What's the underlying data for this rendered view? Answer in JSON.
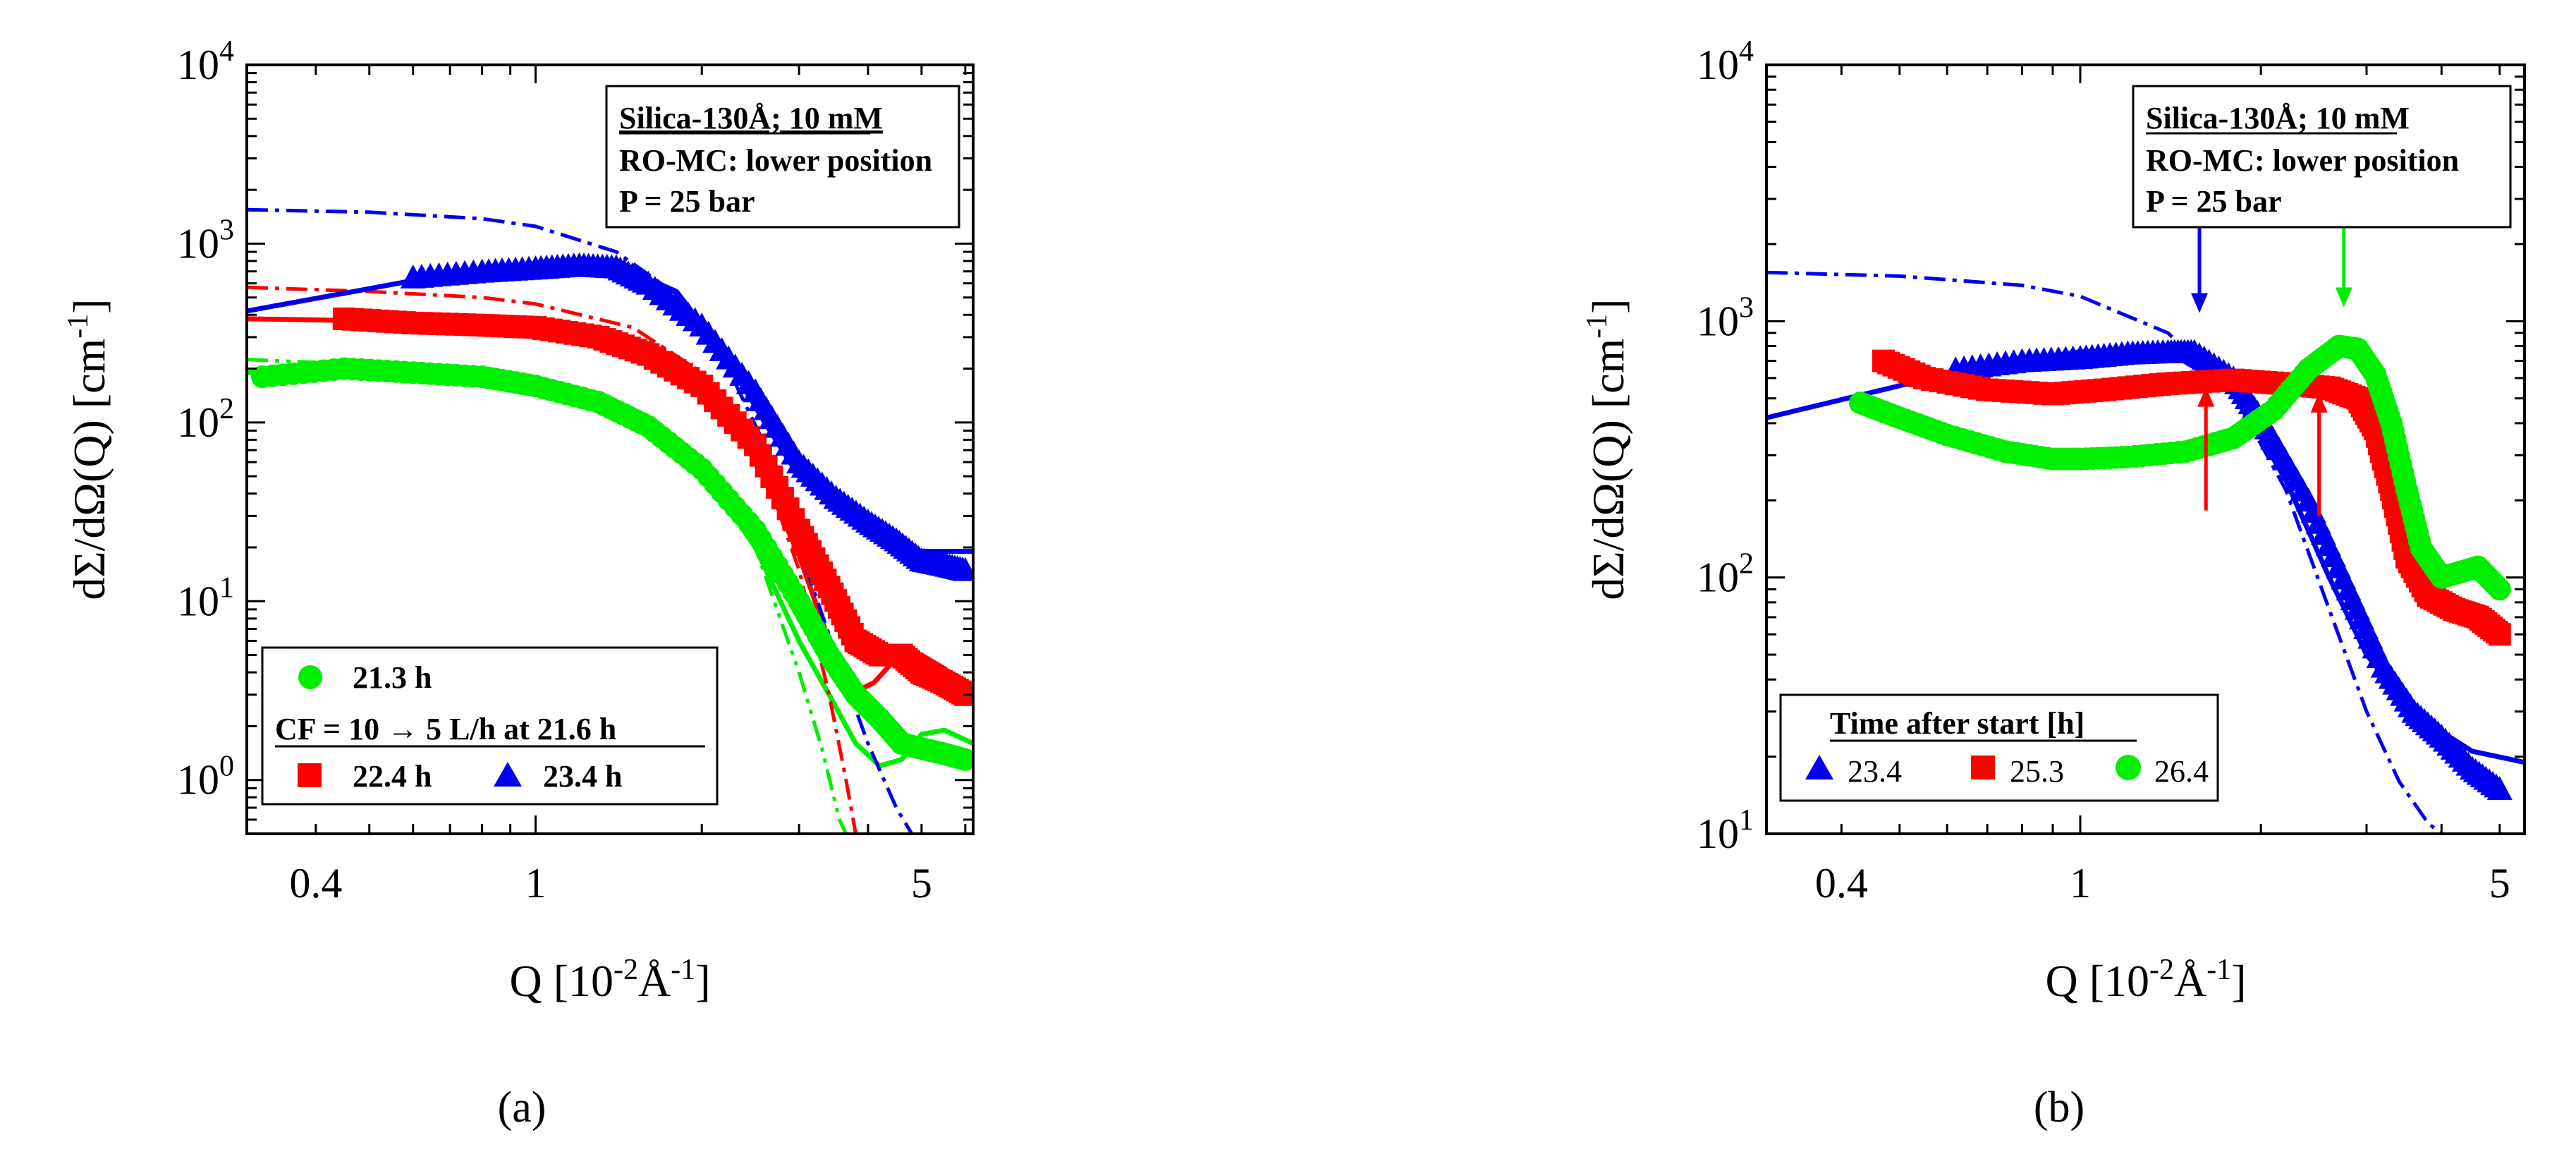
{
  "chart_data": [
    {
      "type": "scatter",
      "panel_label": "(a)",
      "xscale": "log",
      "yscale": "log",
      "xlim": [
        0.3,
        6.2
      ],
      "ylim": [
        0.5,
        10000
      ],
      "xticks": [
        {
          "v": 0.4,
          "label": "0.4"
        },
        {
          "v": 1,
          "label": "1"
        },
        {
          "v": 5,
          "label": "5"
        }
      ],
      "yticks": [
        {
          "v": 1,
          "exp": "0"
        },
        {
          "v": 10,
          "exp": "1"
        },
        {
          "v": 100,
          "exp": "2"
        },
        {
          "v": 1000,
          "exp": "3"
        },
        {
          "v": 10000,
          "exp": "4"
        }
      ],
      "xlabel": {
        "pre": "Q [10",
        "sup1": "-2",
        "mid": "Å",
        "sup2": "-1",
        "post": "]"
      },
      "ylabel": {
        "pre": "dΣ/dΩ(Q) [cm",
        "sup": "-1",
        "post": "]"
      },
      "info_box": {
        "title": "Silica-130Å; 10 mM",
        "line2": "RO-MC: lower position",
        "line3": "P = 25 bar"
      },
      "legend": {
        "placement": "bottom-left",
        "entry1": "21.3 h",
        "heading": "CF = 10 → 5 L/h at 21.6 h",
        "entry2": "22.4 h",
        "entry3": "23.4 h"
      },
      "series": [
        {
          "name": "21.3 h",
          "color": "#00ee00",
          "marker": "circle",
          "x": [
            0.32,
            0.45,
            0.6,
            0.8,
            1.0,
            1.3,
            1.6,
            2.0,
            2.5,
            3.0,
            3.4,
            3.8,
            4.2,
            4.6,
            5.0,
            5.5,
            6.0
          ],
          "y": [
            180,
            200,
            190,
            180,
            160,
            130,
            95,
            55,
            25,
            10,
            5,
            3,
            2.2,
            1.6,
            1.5,
            1.4,
            1.3
          ]
        },
        {
          "name": "22.4 h",
          "color": "#ff0000",
          "marker": "square",
          "x": [
            0.45,
            0.6,
            0.8,
            1.0,
            1.3,
            1.6,
            2.0,
            2.5,
            3.0,
            3.4,
            3.8,
            4.2,
            4.6,
            5.0,
            5.5,
            6.0
          ],
          "y": [
            380,
            360,
            350,
            340,
            300,
            240,
            160,
            75,
            25,
            12,
            6,
            5,
            5,
            4,
            3.5,
            3
          ]
        },
        {
          "name": "23.4 h",
          "color": "#0000ee",
          "marker": "triangle",
          "x": [
            0.6,
            0.8,
            1.0,
            1.2,
            1.4,
            1.6,
            2.0,
            2.5,
            3.0,
            3.5,
            4.0,
            4.5,
            5.0,
            5.5,
            6.0
          ],
          "y": [
            650,
            700,
            730,
            760,
            740,
            600,
            350,
            150,
            60,
            38,
            28,
            22,
            17,
            16,
            15
          ]
        }
      ]
    },
    {
      "type": "scatter",
      "panel_label": "(b)",
      "xscale": "log",
      "yscale": "log",
      "xlim": [
        0.3,
        5.5
      ],
      "ylim": [
        10,
        10000
      ],
      "xticks": [
        {
          "v": 0.4,
          "label": "0.4"
        },
        {
          "v": 1,
          "label": "1"
        },
        {
          "v": 5,
          "label": "5"
        }
      ],
      "yticks": [
        {
          "v": 10,
          "exp": "1"
        },
        {
          "v": 100,
          "exp": "2"
        },
        {
          "v": 1000,
          "exp": "3"
        },
        {
          "v": 10000,
          "exp": "4"
        }
      ],
      "xlabel": {
        "pre": "Q [10",
        "sup1": "-2",
        "mid": "Å",
        "sup2": "-1",
        "post": "]"
      },
      "ylabel": {
        "pre": "dΣ/dΩ(Q) [cm",
        "sup": "-1",
        "post": "]"
      },
      "info_box": {
        "title": "Silica-130Å; 10 mM",
        "line2": "RO-MC: lower position",
        "line3": "P = 25 bar"
      },
      "legend": {
        "placement": "bottom-left",
        "heading": "Time after start [h]",
        "entry1": "23.4",
        "entry2": "25.3",
        "entry3": "26.4"
      },
      "series": [
        {
          "name": "23.4",
          "color": "#0000ee",
          "marker": "triangle",
          "x": [
            0.62,
            0.8,
            1.0,
            1.2,
            1.4,
            1.55,
            1.8,
            2.0,
            2.4,
            2.8,
            3.2,
            3.6,
            4.0,
            4.5,
            5.0
          ],
          "y": [
            650,
            700,
            720,
            750,
            760,
            760,
            600,
            420,
            200,
            90,
            45,
            30,
            24,
            18,
            15
          ]
        },
        {
          "name": "25.3",
          "color": "#ff0000",
          "marker": "square",
          "x": [
            0.47,
            0.55,
            0.7,
            0.9,
            1.1,
            1.4,
            1.8,
            2.2,
            2.6,
            2.9,
            3.1,
            3.3,
            3.5,
            3.8,
            4.2,
            4.6,
            5.0
          ],
          "y": [
            700,
            600,
            540,
            520,
            540,
            570,
            590,
            570,
            550,
            500,
            380,
            220,
            120,
            85,
            75,
            70,
            60
          ]
        },
        {
          "name": "26.4",
          "color": "#00ee00",
          "marker": "circle",
          "x": [
            0.43,
            0.5,
            0.6,
            0.75,
            0.9,
            1.0,
            1.2,
            1.5,
            1.8,
            2.1,
            2.4,
            2.7,
            2.9,
            3.1,
            3.3,
            3.5,
            3.7,
            4.0,
            4.3,
            4.6,
            5.0
          ],
          "y": [
            480,
            420,
            360,
            310,
            290,
            290,
            295,
            310,
            350,
            450,
            650,
            800,
            780,
            620,
            400,
            220,
            130,
            100,
            105,
            110,
            90
          ]
        }
      ],
      "arrows": [
        {
          "color": "#0000ee",
          "direction": "down",
          "x": 1.58,
          "y": 760
        },
        {
          "color": "#ff0000",
          "direction": "up",
          "x": 1.62,
          "y": 590
        },
        {
          "color": "#ff0000",
          "direction": "up",
          "x": 2.5,
          "y": 560
        },
        {
          "color": "#00ee00",
          "direction": "down",
          "x": 2.75,
          "y": 800
        }
      ]
    }
  ],
  "fits_a": [
    {
      "name": "fit-21.3-solid",
      "color": "#00ee00",
      "dash": "",
      "x": [
        0.3,
        0.5,
        0.8,
        1.0,
        1.5,
        2.0,
        2.5,
        3.0,
        3.4,
        3.8,
        4.2,
        4.6,
        5.0,
        5.5,
        6.2
      ],
      "y": [
        190,
        200,
        180,
        160,
        110,
        55,
        20,
        6,
        3,
        1.6,
        1.2,
        1.3,
        1.8,
        1.9,
        1.6
      ]
    },
    {
      "name": "fit-21.3-dash",
      "color": "#00ee00",
      "dash": "30,10,6,10,6,10",
      "x": [
        0.3,
        0.5,
        0.8,
        1.0,
        1.5,
        2.0,
        2.5,
        3.0,
        3.3,
        3.55,
        3.65
      ],
      "y": [
        225,
        210,
        190,
        170,
        120,
        60,
        20,
        4,
        1.5,
        0.6,
        0.5
      ]
    },
    {
      "name": "fit-22.4-solid",
      "color": "#ff0000",
      "dash": "",
      "x": [
        0.3,
        0.5,
        0.8,
        1.0,
        1.5,
        2.0,
        2.5,
        3.0,
        3.4,
        3.7,
        4.1,
        4.5,
        5.0,
        5.5,
        6.2
      ],
      "y": [
        380,
        370,
        350,
        330,
        250,
        150,
        65,
        18,
        6,
        3,
        3.5,
        4.8,
        5,
        4.2,
        3
      ]
    },
    {
      "name": "fit-22.4-dash",
      "color": "#ff0000",
      "dash": "30,10,6,10",
      "x": [
        0.3,
        0.5,
        0.8,
        1.0,
        1.5,
        2.0,
        2.5,
        3.0,
        3.4,
        3.65,
        3.8
      ],
      "y": [
        570,
        540,
        500,
        460,
        340,
        190,
        75,
        15,
        3,
        1,
        0.5
      ]
    },
    {
      "name": "fit-23.4-solid",
      "color": "#0000ee",
      "dash": "",
      "x": [
        0.3,
        0.5,
        0.7,
        1.0,
        1.4,
        1.8,
        2.2,
        2.6,
        3.0,
        3.5,
        4.0,
        4.5,
        5.0,
        6.2
      ],
      "y": [
        420,
        560,
        680,
        760,
        760,
        540,
        240,
        100,
        50,
        32,
        25,
        21,
        19,
        19
      ]
    },
    {
      "name": "fit-23.4-dash",
      "color": "#0000ee",
      "dash": "30,10,6,10",
      "x": [
        0.3,
        0.5,
        0.8,
        1.0,
        1.4,
        1.8,
        2.2,
        2.6,
        3.0,
        3.5,
        4.0,
        4.5,
        4.8
      ],
      "y": [
        1550,
        1500,
        1380,
        1250,
        900,
        520,
        220,
        75,
        20,
        5,
        1.6,
        0.7,
        0.5
      ]
    }
  ],
  "fits_b": [
    {
      "name": "fit-b-23.4-solid",
      "color": "#0000ee",
      "dash": "",
      "x": [
        0.3,
        0.5,
        0.7,
        1.0,
        1.4,
        1.8,
        2.2,
        2.6,
        3.0,
        3.5,
        4.0,
        4.5,
        5.5
      ],
      "y": [
        420,
        560,
        680,
        760,
        760,
        540,
        240,
        100,
        50,
        32,
        25,
        21,
        19
      ]
    },
    {
      "name": "fit-b-23.4-dash",
      "color": "#0000ee",
      "dash": "30,10,6,10",
      "x": [
        0.3,
        0.5,
        0.8,
        1.0,
        1.4,
        1.8,
        2.2,
        2.6,
        3.0,
        3.4,
        3.8,
        4.0
      ],
      "y": [
        1550,
        1500,
        1380,
        1250,
        900,
        520,
        220,
        75,
        30,
        16,
        11,
        10
      ]
    }
  ]
}
